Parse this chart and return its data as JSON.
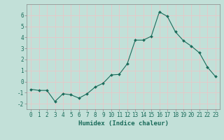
{
  "x": [
    0,
    1,
    2,
    3,
    4,
    5,
    6,
    7,
    8,
    9,
    10,
    11,
    12,
    13,
    14,
    15,
    16,
    17,
    18,
    19,
    20,
    21,
    22,
    23
  ],
  "y": [
    -0.7,
    -0.8,
    -0.8,
    -1.8,
    -1.1,
    -1.2,
    -1.5,
    -1.1,
    -0.5,
    -0.15,
    0.6,
    0.65,
    1.6,
    3.75,
    3.75,
    4.1,
    6.3,
    5.9,
    4.5,
    3.7,
    3.2,
    2.6,
    1.3,
    0.45
  ],
  "line_color": "#1a6b5a",
  "marker": "D",
  "marker_size": 2.0,
  "bg_color": "#c2e0d8",
  "grid_color": "#e8c8c8",
  "xlabel": "Humidex (Indice chaleur)",
  "xlim": [
    -0.5,
    23.5
  ],
  "ylim": [
    -2.5,
    7.0
  ],
  "yticks": [
    -2,
    -1,
    0,
    1,
    2,
    3,
    4,
    5,
    6
  ],
  "xticks": [
    0,
    1,
    2,
    3,
    4,
    5,
    6,
    7,
    8,
    9,
    10,
    11,
    12,
    13,
    14,
    15,
    16,
    17,
    18,
    19,
    20,
    21,
    22,
    23
  ],
  "tick_color": "#1a6b5a",
  "label_fontsize": 6.5,
  "tick_fontsize": 5.5,
  "spine_color": "#888888",
  "linewidth": 0.8
}
